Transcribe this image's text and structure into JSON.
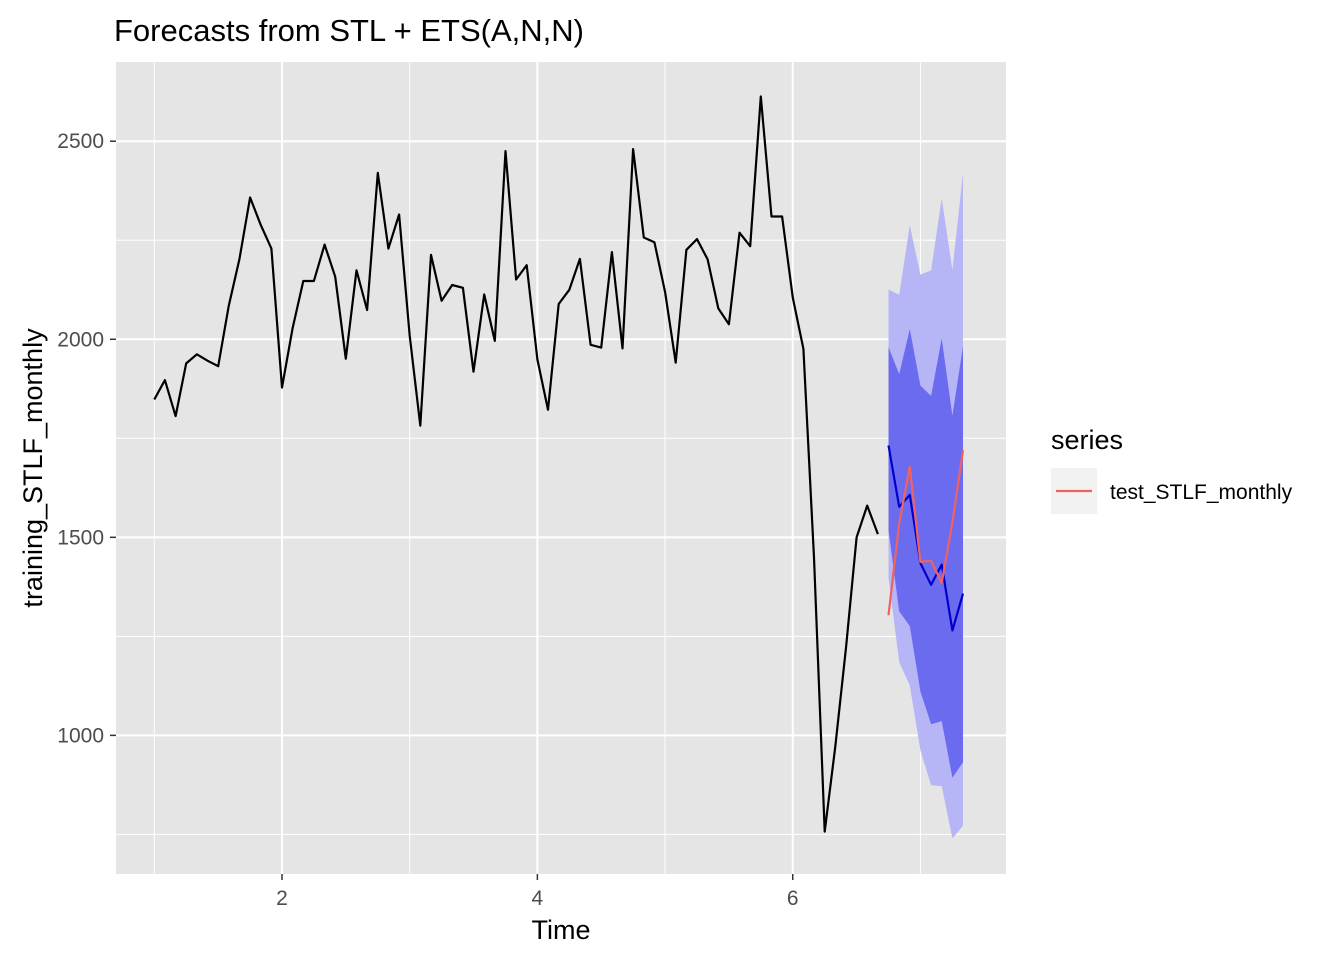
{
  "chart_data": {
    "type": "line",
    "title": "Forecasts from STL +  ETS(A,N,N)",
    "xlabel": "Time",
    "ylabel": "training_STLF_monthly",
    "xlim": [
      0.7,
      7.67
    ],
    "ylim": [
      650,
      2700
    ],
    "x_ticks": [
      2,
      4,
      6
    ],
    "x_tick_labels": [
      "2",
      "4",
      "6"
    ],
    "y_ticks": [
      1000,
      1500,
      2000,
      2500
    ],
    "y_tick_labels": [
      "1000",
      "1500",
      "2000",
      "2500"
    ],
    "grid": true,
    "legend": {
      "title": "series",
      "placement": "right",
      "entries": [
        "test_STLF_monthly"
      ]
    },
    "colors": {
      "panel": "#e5e5e5",
      "grid": "#ffffff",
      "training": "#000000",
      "forecast_mean": "#0000cc",
      "pi80": "#6b6bf0",
      "pi95": "#b6b6f6",
      "test": "#f0625f",
      "legend_key_bg": "#f2f2f2"
    },
    "training": {
      "name": "training_STLF_monthly",
      "x": [
        1,
        1.0833,
        1.1667,
        1.25,
        1.3333,
        1.4167,
        1.5,
        1.5833,
        1.6667,
        1.75,
        1.8333,
        1.9167,
        2,
        2.0833,
        2.1667,
        2.25,
        2.3333,
        2.4167,
        2.5,
        2.5833,
        2.6667,
        2.75,
        2.8333,
        2.9167,
        3,
        3.0833,
        3.1667,
        3.25,
        3.3333,
        3.4167,
        3.5,
        3.5833,
        3.6667,
        3.75,
        3.8333,
        3.9167,
        4,
        4.0833,
        4.1667,
        4.25,
        4.3333,
        4.4167,
        4.5,
        4.5833,
        4.6667,
        4.75,
        4.8333,
        4.9167,
        5,
        5.0833,
        5.1667,
        5.25,
        5.3333,
        5.4167,
        5.5,
        5.5833,
        5.6667,
        5.75,
        5.8333,
        5.9167,
        6,
        6.0833,
        6.1667,
        6.25,
        6.3333,
        6.4167,
        6.5,
        6.5833,
        6.6667
      ],
      "values": [
        1848,
        1897,
        1806,
        1939,
        1962,
        1946,
        1932,
        2085,
        2202,
        2358,
        2289,
        2229,
        1878,
        2028,
        2147,
        2147,
        2239,
        2158,
        1951,
        2174,
        2074,
        2420,
        2229,
        2315,
        2009,
        1782,
        2213,
        2097,
        2137,
        2130,
        1918,
        2113,
        1996,
        2475,
        2151,
        2187,
        1949,
        1822,
        2089,
        2125,
        2203,
        1986,
        1979,
        2220,
        1977,
        2480,
        2257,
        2245,
        2119,
        1941,
        2226,
        2253,
        2202,
        2078,
        2038,
        2269,
        2235,
        2613,
        2310,
        2310,
        2105,
        1976,
        1449,
        757,
        972,
        1221,
        1500,
        1580,
        1508
      ]
    },
    "forecast": {
      "x": [
        6.75,
        6.8333,
        6.9167,
        7,
        7.0833,
        7.1667,
        7.25,
        7.3333
      ],
      "mean": [
        1732,
        1577,
        1607,
        1435,
        1380,
        1431,
        1265,
        1358
      ],
      "lo80": [
        1518,
        1313,
        1276,
        1111,
        1028,
        1036,
        893,
        932
      ],
      "hi80": [
        1980,
        1912,
        2026,
        1883,
        1857,
        2002,
        1807,
        1983
      ],
      "lo95": [
        1398,
        1185,
        1126,
        962,
        874,
        872,
        740,
        772
      ],
      "hi95": [
        2126,
        2112,
        2288,
        2163,
        2174,
        2356,
        2175,
        2420
      ]
    },
    "test": {
      "name": "test_STLF_monthly",
      "x": [
        6.75,
        6.8333,
        6.9167,
        7,
        7.0833,
        7.1667,
        7.25,
        7.3333
      ],
      "values": [
        1303,
        1535,
        1678,
        1438,
        1441,
        1385,
        1538,
        1720
      ]
    }
  }
}
